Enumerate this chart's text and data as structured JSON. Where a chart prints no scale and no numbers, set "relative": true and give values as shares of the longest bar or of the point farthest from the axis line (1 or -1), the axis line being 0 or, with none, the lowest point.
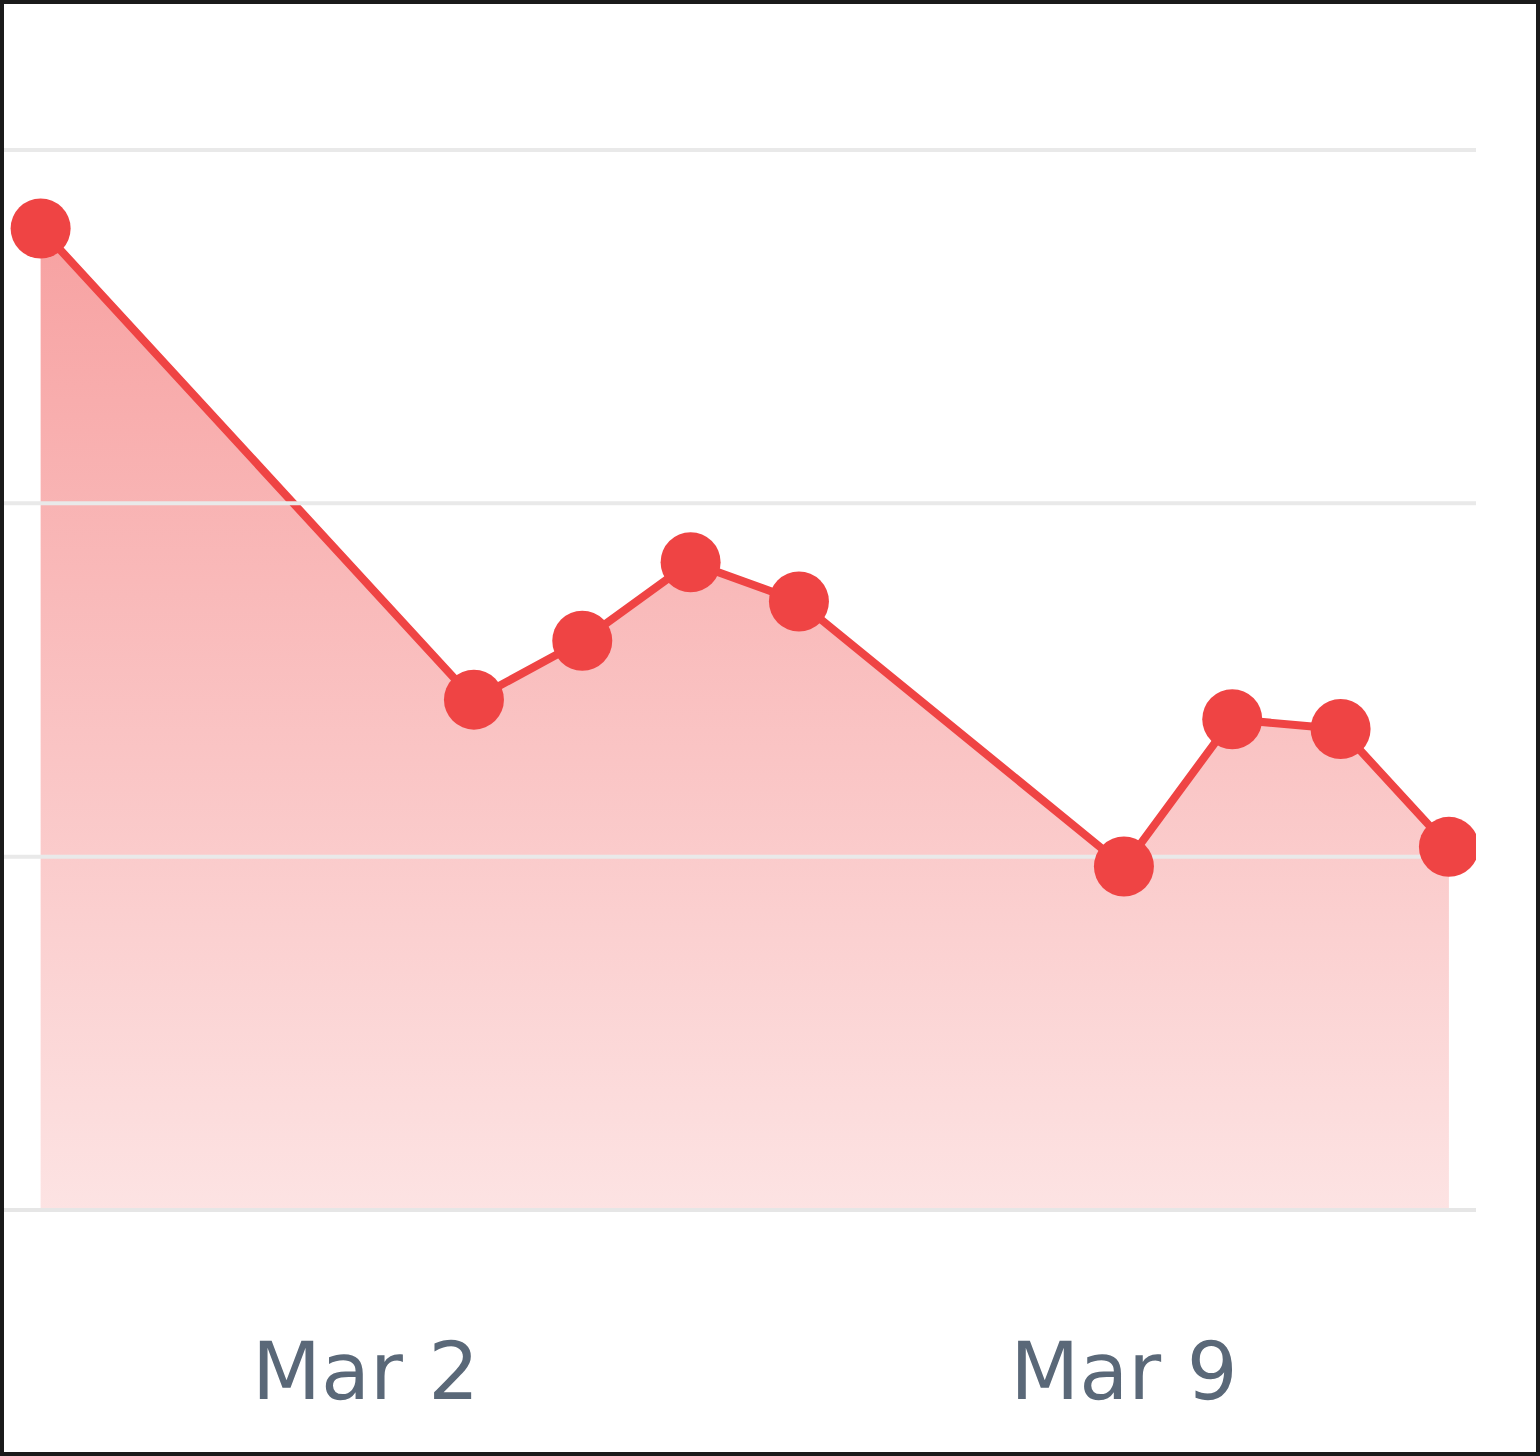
{
  "chart_data": {
    "type": "area",
    "relative": true,
    "x": [
      "--02-27",
      "--03-03",
      "--03-04",
      "--03-05",
      "--03-06",
      "--03-09",
      "--03-10",
      "--03-11",
      "--03-12"
    ],
    "series": [
      {
        "color": "#ef4444",
        "values": [
          1,
          0.52,
          0.58,
          0.66,
          0.62,
          0.35,
          0.5,
          0.49,
          0.37
        ]
      }
    ],
    "xlim": [
      "--02-26T15:00",
      "--03-12T06:00"
    ],
    "xticks": [
      {
        "value": "--03-02",
        "label": "Mar 2"
      },
      {
        "value": "--03-09",
        "label": "Mar 9"
      }
    ],
    "ref_lines": [
      {
        "axis": "y",
        "value": 0.36,
        "color": "#e9e9e9"
      },
      {
        "axis": "y",
        "value": 0.72,
        "color": "#e9e9e9"
      },
      {
        "axis": "y",
        "value": 1.08,
        "color": "#e9e9e9"
      }
    ],
    "marker": "circle",
    "line_style": "solid"
  }
}
